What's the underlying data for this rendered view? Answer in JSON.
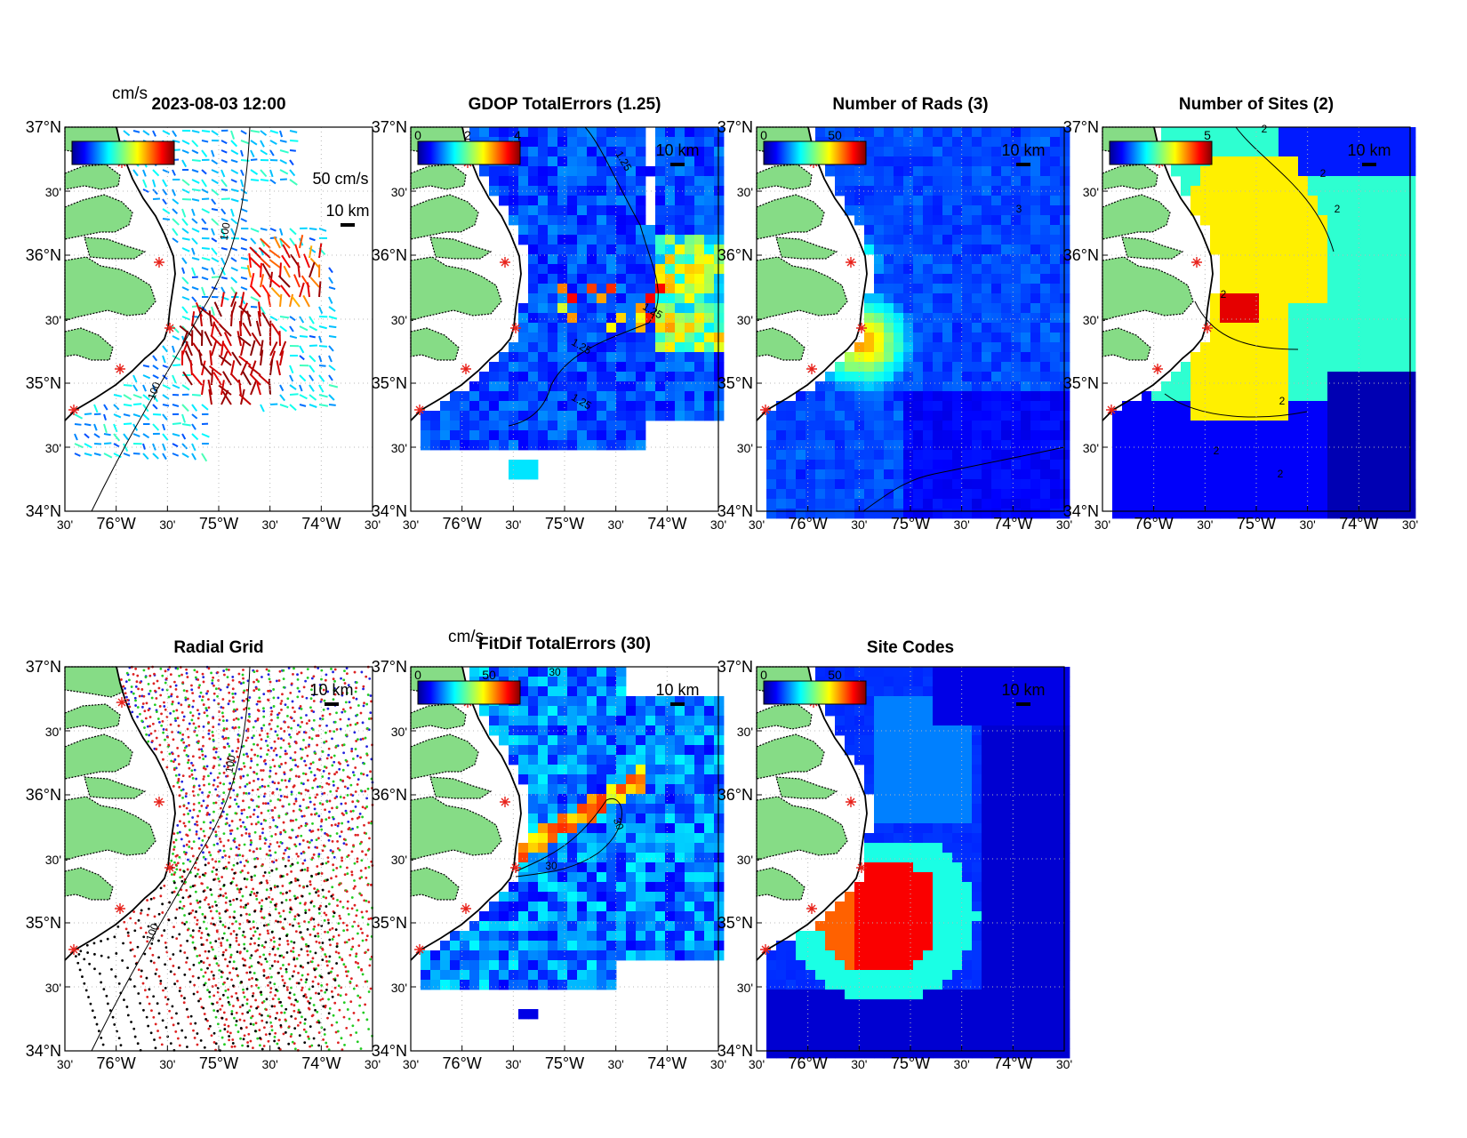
{
  "figure": {
    "colors": {
      "land": "#86dc86",
      "water": "#ffffff",
      "frame": "#000000",
      "grid": "#b8b8b8",
      "site_marker": "#e8231c"
    },
    "lat_ticks": [
      "37°N",
      "30'",
      "36°N",
      "30'",
      "35°N",
      "30'",
      "34°N"
    ],
    "lon_ticks": [
      "30'",
      "76°W",
      "30'",
      "75°W",
      "30'",
      "74°W",
      "30'"
    ],
    "scale_label": "10 km",
    "panels": [
      {
        "id": "totals",
        "title": "2023-08-03 12:00",
        "unit": "cm/s",
        "colorbar": {
          "cmap": "jet",
          "ticks": []
        },
        "extra_label": "50 cm/s",
        "contour_labels": [
          "100",
          "100"
        ]
      },
      {
        "id": "gdop",
        "title": "GDOP TotalErrors (1.25)",
        "colorbar": {
          "cmap": "jet",
          "ticks": [
            "0",
            "2",
            "4"
          ]
        },
        "contour_labels": [
          "1.25",
          "1.25",
          "1.25",
          "1.25"
        ]
      },
      {
        "id": "nrads",
        "title": "Number of Rads (3)",
        "colorbar": {
          "cmap": "jet",
          "ticks": [
            "0",
            "50"
          ]
        },
        "contour_labels": [
          "3"
        ]
      },
      {
        "id": "nsites",
        "title": "Number of Sites (2)",
        "colorbar": {
          "cmap": "jet",
          "ticks": [
            "5"
          ]
        },
        "contour_labels": [
          "2",
          "2",
          "2",
          "2",
          "2",
          "2",
          "2"
        ]
      },
      {
        "id": "radgrid",
        "title": "Radial Grid",
        "contour_labels": [
          "100",
          "100"
        ]
      },
      {
        "id": "fitdif",
        "title": "FitDif TotalErrors (30)",
        "unit": "cm/s",
        "colorbar": {
          "cmap": "jet",
          "ticks": [
            "0",
            "50"
          ]
        },
        "contour_labels": [
          "30",
          "30",
          "30"
        ]
      },
      {
        "id": "sitecodes",
        "title": "Site Codes",
        "colorbar": {
          "cmap": "jet",
          "ticks": [
            "0",
            "50"
          ]
        }
      }
    ]
  }
}
